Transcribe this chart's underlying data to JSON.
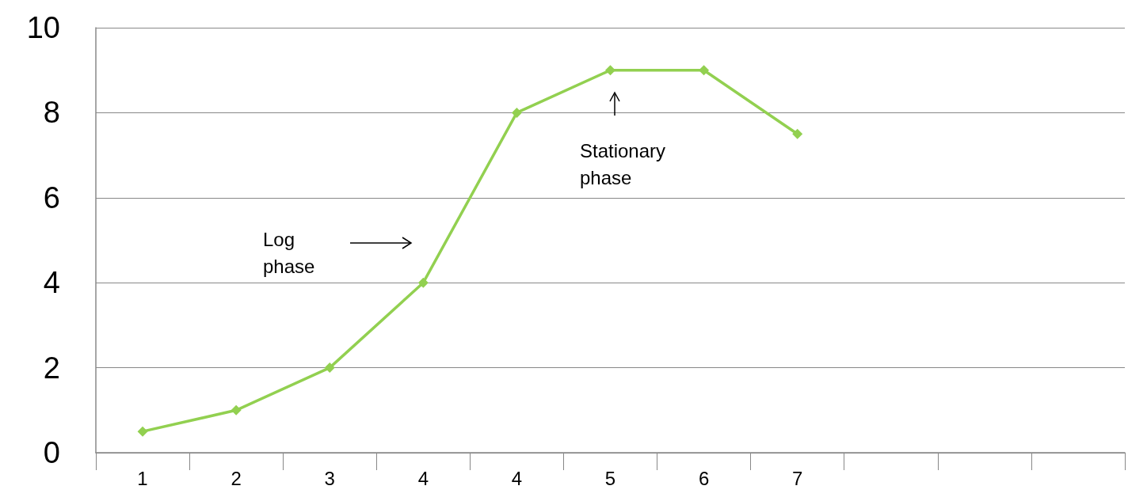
{
  "chart_data": {
    "type": "line",
    "categories": [
      "1",
      "2",
      "3",
      "4",
      "4",
      "5",
      "6",
      "7",
      null,
      null,
      null
    ],
    "series": [
      {
        "color": "#92d050",
        "values": [
          0.5,
          1,
          2,
          4,
          8,
          9,
          9,
          7.5,
          null,
          null,
          null
        ]
      }
    ],
    "ylim": [
      0,
      10
    ],
    "yticks": [
      0,
      2,
      4,
      6,
      8,
      10
    ],
    "grid": "y",
    "marker": "diamond",
    "line_style": "solid",
    "annotations": [
      "Log\nphase",
      "Stationary\nphase"
    ]
  }
}
